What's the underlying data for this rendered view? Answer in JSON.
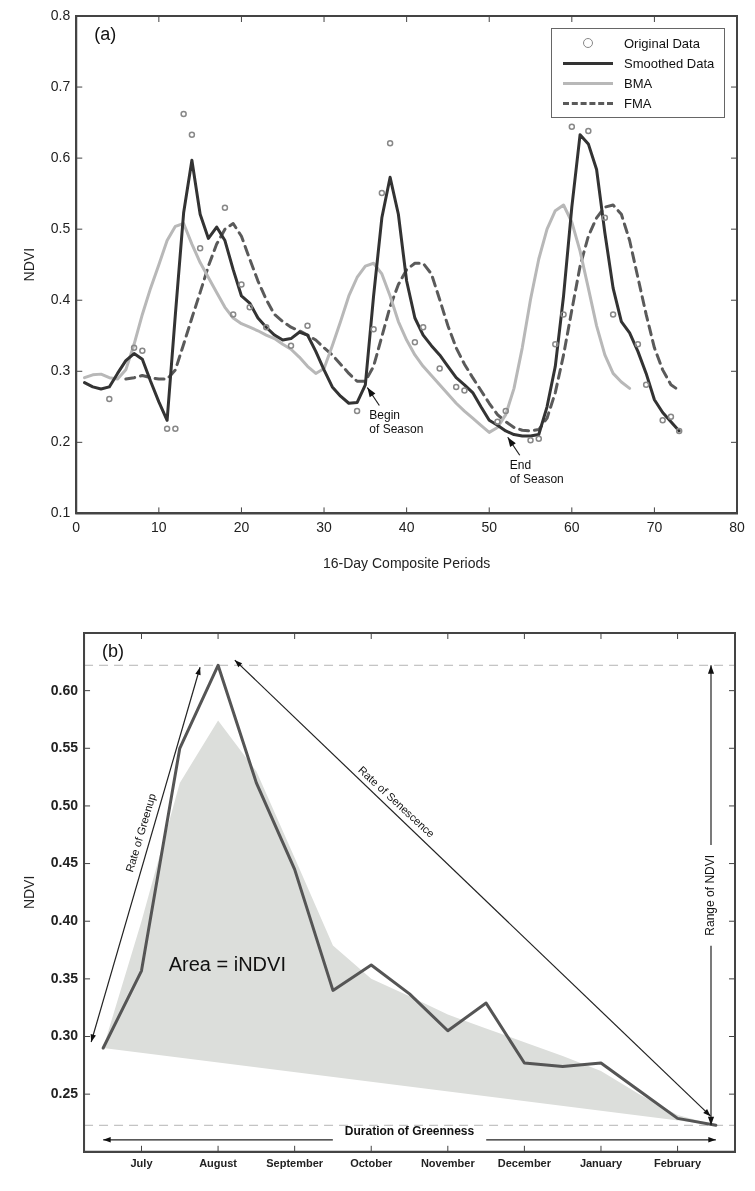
{
  "chart_data": [
    {
      "type": "line",
      "xlabel": "16-Day Composite Periods",
      "ylabel": "NDVI",
      "xlim": [
        0,
        80
      ],
      "xticks": [
        0,
        10,
        20,
        30,
        40,
        50,
        60,
        70,
        80
      ],
      "ylim": [
        0.1,
        0.8
      ],
      "yticks": [
        0.1,
        0.2,
        0.3,
        0.4,
        0.5,
        0.6,
        0.7,
        0.8
      ],
      "legend": "top right",
      "annotations": [
        "(a)",
        {
          "text": "Begin\nof Season",
          "x": 35,
          "y": 0.28
        },
        {
          "text": "End\nof Season",
          "x": 52,
          "y": 0.21
        }
      ],
      "series": [
        {
          "name": "Original Data",
          "type": "scatter",
          "marker": "circle",
          "color": "#888888",
          "x": [
            4,
            7,
            8,
            11,
            12,
            13,
            14,
            15,
            18,
            19,
            20,
            21,
            23,
            26,
            28,
            34,
            36,
            37,
            38,
            41,
            42,
            44,
            46,
            47,
            51,
            52,
            55,
            56,
            58,
            59,
            60,
            62,
            64,
            65,
            68,
            69,
            71,
            72,
            73
          ],
          "values": [
            0.261,
            0.333,
            0.329,
            0.219,
            0.219,
            0.662,
            0.633,
            0.473,
            0.53,
            0.38,
            0.422,
            0.39,
            0.362,
            0.336,
            0.364,
            0.244,
            0.359,
            0.551,
            0.621,
            0.341,
            0.362,
            0.304,
            0.278,
            0.273,
            0.229,
            0.244,
            0.203,
            0.205,
            0.338,
            0.38,
            0.644,
            0.638,
            0.516,
            0.38,
            0.338,
            0.281,
            0.231,
            0.236,
            0.216
          ]
        },
        {
          "name": "Smoothed Data",
          "color": "#333333",
          "line_style": "solid",
          "x": [
            1,
            2,
            3,
            4,
            5,
            6,
            7,
            8,
            9,
            10,
            11,
            12,
            13,
            14,
            15,
            16,
            17,
            18,
            19,
            20,
            21,
            22,
            23,
            24,
            25,
            26,
            27,
            28,
            29,
            30,
            31,
            32,
            33,
            34,
            35,
            36,
            37,
            38,
            39,
            40,
            41,
            42,
            43,
            44,
            45,
            46,
            47,
            48,
            49,
            50,
            51,
            52,
            53,
            54,
            55,
            56,
            57,
            58,
            59,
            60,
            61,
            62,
            63,
            64,
            65,
            66,
            67,
            68,
            69,
            70,
            71,
            72,
            73
          ],
          "values": [
            0.284,
            0.278,
            0.275,
            0.278,
            0.297,
            0.315,
            0.325,
            0.317,
            0.286,
            0.257,
            0.231,
            0.38,
            0.523,
            0.597,
            0.521,
            0.487,
            0.503,
            0.484,
            0.443,
            0.406,
            0.396,
            0.375,
            0.362,
            0.351,
            0.344,
            0.346,
            0.355,
            0.351,
            0.328,
            0.302,
            0.278,
            0.265,
            0.255,
            0.256,
            0.281,
            0.406,
            0.516,
            0.573,
            0.521,
            0.427,
            0.375,
            0.351,
            0.336,
            0.323,
            0.307,
            0.291,
            0.281,
            0.27,
            0.25,
            0.231,
            0.224,
            0.216,
            0.211,
            0.209,
            0.209,
            0.211,
            0.25,
            0.307,
            0.406,
            0.531,
            0.633,
            0.62,
            0.584,
            0.495,
            0.417,
            0.37,
            0.354,
            0.328,
            0.297,
            0.26,
            0.242,
            0.229,
            0.216
          ]
        },
        {
          "name": "BMA",
          "color": "#b8b8b8",
          "line_style": "solid",
          "x": [
            1,
            2,
            3,
            4,
            5,
            6,
            7,
            8,
            9,
            10,
            11,
            12,
            13,
            14,
            15,
            16,
            17,
            18,
            19,
            20,
            21,
            22,
            23,
            24,
            25,
            26,
            27,
            28,
            29,
            30,
            31,
            32,
            33,
            34,
            35,
            36,
            37,
            38,
            39,
            40,
            41,
            42,
            43,
            44,
            45,
            46,
            47,
            48,
            49,
            50,
            51,
            52,
            53,
            54,
            55,
            56,
            57,
            58,
            59,
            60,
            61,
            62,
            63,
            64,
            65,
            66,
            67
          ],
          "values": [
            0.291,
            0.295,
            0.296,
            0.291,
            0.289,
            0.302,
            0.338,
            0.38,
            0.417,
            0.45,
            0.484,
            0.504,
            0.508,
            0.479,
            0.453,
            0.432,
            0.411,
            0.39,
            0.375,
            0.367,
            0.362,
            0.357,
            0.351,
            0.346,
            0.338,
            0.331,
            0.32,
            0.307,
            0.297,
            0.304,
            0.336,
            0.37,
            0.406,
            0.432,
            0.448,
            0.452,
            0.437,
            0.406,
            0.37,
            0.344,
            0.323,
            0.307,
            0.294,
            0.281,
            0.268,
            0.255,
            0.244,
            0.234,
            0.224,
            0.214,
            0.221,
            0.239,
            0.276,
            0.333,
            0.401,
            0.458,
            0.5,
            0.526,
            0.534,
            0.51,
            0.469,
            0.417,
            0.364,
            0.323,
            0.297,
            0.285,
            0.276
          ]
        },
        {
          "name": "FMA",
          "color": "#5a5a5a",
          "line_style": "dashed",
          "x": [
            6,
            7,
            8,
            9,
            10,
            11,
            12,
            13,
            14,
            15,
            16,
            17,
            18,
            19,
            20,
            21,
            22,
            23,
            24,
            25,
            26,
            27,
            28,
            29,
            30,
            31,
            32,
            33,
            34,
            35,
            36,
            37,
            38,
            39,
            40,
            41,
            42,
            43,
            44,
            45,
            46,
            47,
            48,
            49,
            50,
            51,
            52,
            53,
            54,
            55,
            56,
            57,
            58,
            59,
            60,
            61,
            62,
            63,
            64,
            65,
            66,
            67,
            68,
            69,
            70,
            71,
            72,
            73
          ],
          "values": [
            0.289,
            0.291,
            0.294,
            0.291,
            0.289,
            0.289,
            0.302,
            0.338,
            0.375,
            0.411,
            0.448,
            0.479,
            0.5,
            0.508,
            0.49,
            0.458,
            0.427,
            0.401,
            0.38,
            0.37,
            0.362,
            0.357,
            0.351,
            0.344,
            0.333,
            0.323,
            0.31,
            0.297,
            0.286,
            0.286,
            0.307,
            0.349,
            0.391,
            0.422,
            0.443,
            0.452,
            0.452,
            0.437,
            0.401,
            0.364,
            0.333,
            0.31,
            0.291,
            0.273,
            0.255,
            0.239,
            0.229,
            0.221,
            0.217,
            0.216,
            0.218,
            0.234,
            0.27,
            0.323,
            0.386,
            0.448,
            0.49,
            0.516,
            0.531,
            0.534,
            0.521,
            0.484,
            0.432,
            0.38,
            0.333,
            0.302,
            0.281,
            0.273
          ]
        }
      ]
    },
    {
      "type": "line",
      "ylabel": "NDVI",
      "categories": [
        null,
        "July",
        null,
        "August",
        null,
        "September",
        null,
        "October",
        null,
        "November",
        null,
        "December",
        null,
        "January",
        null,
        "February",
        null
      ],
      "ylim": [
        0.2,
        0.65
      ],
      "yticks": [
        {
          "value": 0.25,
          "label": "0.25"
        },
        {
          "value": 0.3,
          "label": "0.30"
        },
        {
          "value": 0.35,
          "label": "0.35"
        },
        {
          "value": 0.4,
          "label": "0.40"
        },
        {
          "value": 0.45,
          "label": "0.45"
        },
        {
          "value": 0.5,
          "label": "0.50"
        },
        {
          "value": 0.55,
          "label": "0.55"
        },
        {
          "value": 0.6,
          "label": "0.60"
        }
      ],
      "annotations": [
        "(b)",
        "Rate of Greenup",
        "Rate of Senescence",
        {
          "text": "Range of NDVI",
          "y": 0.622
        },
        "Duration of Greenness",
        "Area = iNDVI"
      ],
      "ref_lines": [
        {
          "axis": "y",
          "value": 0.622,
          "color": "#b4b4b4",
          "line_style": "dashed"
        },
        {
          "axis": "y",
          "value": 0.223,
          "color": "#b4b4b4",
          "line_style": "dashed"
        }
      ],
      "series": [
        {
          "type": "area",
          "color": "#dcdedb",
          "values": [
            0.29,
            0.4,
            0.52,
            0.574,
            0.53,
            0.455,
            0.379,
            0.35,
            0.335,
            0.319,
            0.307,
            0.295,
            0.283,
            0.27,
            0.25,
            0.232,
            0.223
          ]
        },
        {
          "color": "#555555",
          "line_style": "solid",
          "values": [
            0.29,
            0.357,
            0.55,
            0.622,
            0.52,
            0.445,
            0.34,
            0.362,
            0.337,
            0.305,
            0.329,
            0.277,
            0.274,
            0.277,
            0.253,
            0.229,
            0.223
          ]
        }
      ]
    }
  ]
}
